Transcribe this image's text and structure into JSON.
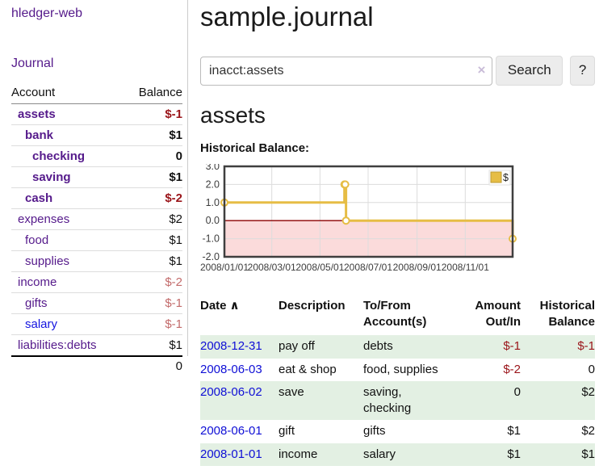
{
  "sidebar": {
    "brand": "hledger-web",
    "journal_link": "Journal",
    "accounts_table": {
      "headers": [
        "Account",
        "Balance"
      ],
      "rows": [
        {
          "name": "assets",
          "level": 0,
          "bold": true,
          "balance": "$-1",
          "neg": "strong"
        },
        {
          "name": "bank",
          "level": 1,
          "bold": true,
          "balance": "$1"
        },
        {
          "name": "checking",
          "level": 2,
          "bold": true,
          "balance": "0"
        },
        {
          "name": "saving",
          "level": 2,
          "bold": true,
          "balance": "$1"
        },
        {
          "name": "cash",
          "level": 1,
          "bold": true,
          "balance": "$-2",
          "neg": "strong"
        },
        {
          "name": "expenses",
          "level": 0,
          "bold": false,
          "balance": "$2"
        },
        {
          "name": "food",
          "level": 1,
          "bold": false,
          "balance": "$1"
        },
        {
          "name": "supplies",
          "level": 1,
          "bold": false,
          "balance": "$1"
        },
        {
          "name": "income",
          "level": 0,
          "bold": false,
          "balance": "$-2",
          "neg": "muted"
        },
        {
          "name": "gifts",
          "level": 1,
          "bold": false,
          "balance": "$-1",
          "neg": "muted"
        },
        {
          "name": "salary",
          "level": 1,
          "bold": false,
          "balance": "$-1",
          "neg": "muted",
          "link_color": "blue"
        },
        {
          "name": "liabilities:debts",
          "level": 0,
          "bold": false,
          "balance": "$1"
        }
      ],
      "total": "0"
    }
  },
  "header": {
    "title": "sample.journal"
  },
  "search": {
    "value": "inacct:assets",
    "clear_icon": "×",
    "button": "Search",
    "help": "?"
  },
  "account_page": {
    "heading": "assets",
    "chart_label": "Historical Balance:"
  },
  "chart_data": {
    "type": "line",
    "title": "Historical Balance",
    "step": true,
    "series": [
      {
        "name": "$",
        "color": "#e6bd45",
        "points": [
          [
            "2008-01-01",
            1
          ],
          [
            "2008-06-01",
            2
          ],
          [
            "2008-06-02",
            2
          ],
          [
            "2008-06-03",
            0
          ],
          [
            "2008-12-31",
            -1
          ]
        ]
      }
    ],
    "xlim": [
      "2008-01-01",
      "2008-12-31"
    ],
    "ylim": [
      -2,
      3
    ],
    "x_ticks": [
      "2008/01/01",
      "2008/03/01",
      "2008/05/01",
      "2008/07/01",
      "2008/09/01",
      "2008/11/01"
    ],
    "y_ticks": [
      "3.0",
      "2.0",
      "1.0",
      "0.0",
      "-1.0",
      "-2.0"
    ],
    "grid": true,
    "legend": {
      "label": "$",
      "position": "top-right"
    },
    "negative_region_fill": "#fbdbdb",
    "zero_line_color": "#8b0000",
    "marker_fill": "#ffffff",
    "border_color": "#3f3f3f",
    "gridline_color": "#dcdcdc"
  },
  "transactions": {
    "headers": [
      {
        "label": "Date",
        "sorted": true
      },
      {
        "label": "Description"
      },
      {
        "label": "To/From Account(s)"
      },
      {
        "label": "Amount Out/In"
      },
      {
        "label": "Historical Balance"
      }
    ],
    "sort_indicator": "∧",
    "rows": [
      {
        "date": "2008-12-31",
        "description": "pay off",
        "accounts": "debts",
        "amount": "$-1",
        "amount_neg": true,
        "balance": "$-1",
        "balance_neg": true
      },
      {
        "date": "2008-06-03",
        "description": "eat & shop",
        "accounts": "food, supplies",
        "amount": "$-2",
        "amount_neg": true,
        "balance": "0",
        "balance_neg": false
      },
      {
        "date": "2008-06-02",
        "description": "save",
        "accounts": "saving, checking",
        "amount": "0",
        "amount_neg": false,
        "balance": "$2",
        "balance_neg": false
      },
      {
        "date": "2008-06-01",
        "description": "gift",
        "accounts": "gifts",
        "amount": "$1",
        "amount_neg": false,
        "balance": "$2",
        "balance_neg": false
      },
      {
        "date": "2008-01-01",
        "description": "income",
        "accounts": "salary",
        "amount": "$1",
        "amount_neg": false,
        "balance": "$1",
        "balance_neg": false
      }
    ]
  }
}
